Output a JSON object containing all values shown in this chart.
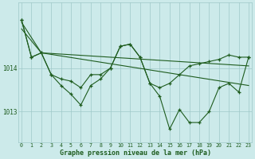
{
  "title": "Graphe pression niveau de la mer (hPa)",
  "bg_color": "#cceaea",
  "line_color": "#1e5c1e",
  "grid_color": "#9fc8c8",
  "tick_color": "#1e5c1e",
  "x_ticks": [
    0,
    1,
    2,
    3,
    4,
    5,
    6,
    7,
    8,
    9,
    10,
    11,
    12,
    13,
    14,
    15,
    16,
    17,
    18,
    19,
    20,
    21,
    22,
    23
  ],
  "y_ticks": [
    1013,
    1014
  ],
  "ylim": [
    1012.3,
    1015.5
  ],
  "xlim": [
    -0.3,
    23.3
  ],
  "line1_x": [
    0,
    1,
    2,
    3,
    4,
    5,
    6,
    7,
    8,
    9,
    10,
    11,
    12,
    13,
    14,
    15,
    16,
    17,
    18,
    19,
    20,
    21,
    22,
    23
  ],
  "line1_y": [
    1015.1,
    1014.25,
    1014.35,
    1013.85,
    1013.75,
    1013.7,
    1013.55,
    1013.85,
    1013.85,
    1014.0,
    1014.5,
    1014.55,
    1014.25,
    1013.65,
    1013.55,
    1013.65,
    1013.85,
    1014.05,
    1014.1,
    1014.15,
    1014.2,
    1014.3,
    1014.25,
    1014.25
  ],
  "line2_x": [
    0,
    1,
    2,
    3,
    4,
    5,
    6,
    7,
    8,
    9,
    10,
    11,
    12,
    13,
    14,
    15,
    16,
    17,
    18,
    19,
    20,
    21,
    22,
    23
  ],
  "line2_y": [
    1015.1,
    1014.25,
    1014.35,
    1013.85,
    1013.6,
    1013.4,
    1013.15,
    1013.6,
    1013.75,
    1014.0,
    1014.5,
    1014.55,
    1014.25,
    1013.65,
    1013.35,
    1012.6,
    1013.05,
    1012.75,
    1012.75,
    1013.0,
    1013.55,
    1013.65,
    1013.45,
    1014.25
  ],
  "line3_x": [
    0,
    2,
    23
  ],
  "line3_y": [
    1015.05,
    1014.35,
    1014.05
  ],
  "line4_x": [
    0,
    2,
    23
  ],
  "line4_y": [
    1014.9,
    1014.35,
    1013.6
  ]
}
